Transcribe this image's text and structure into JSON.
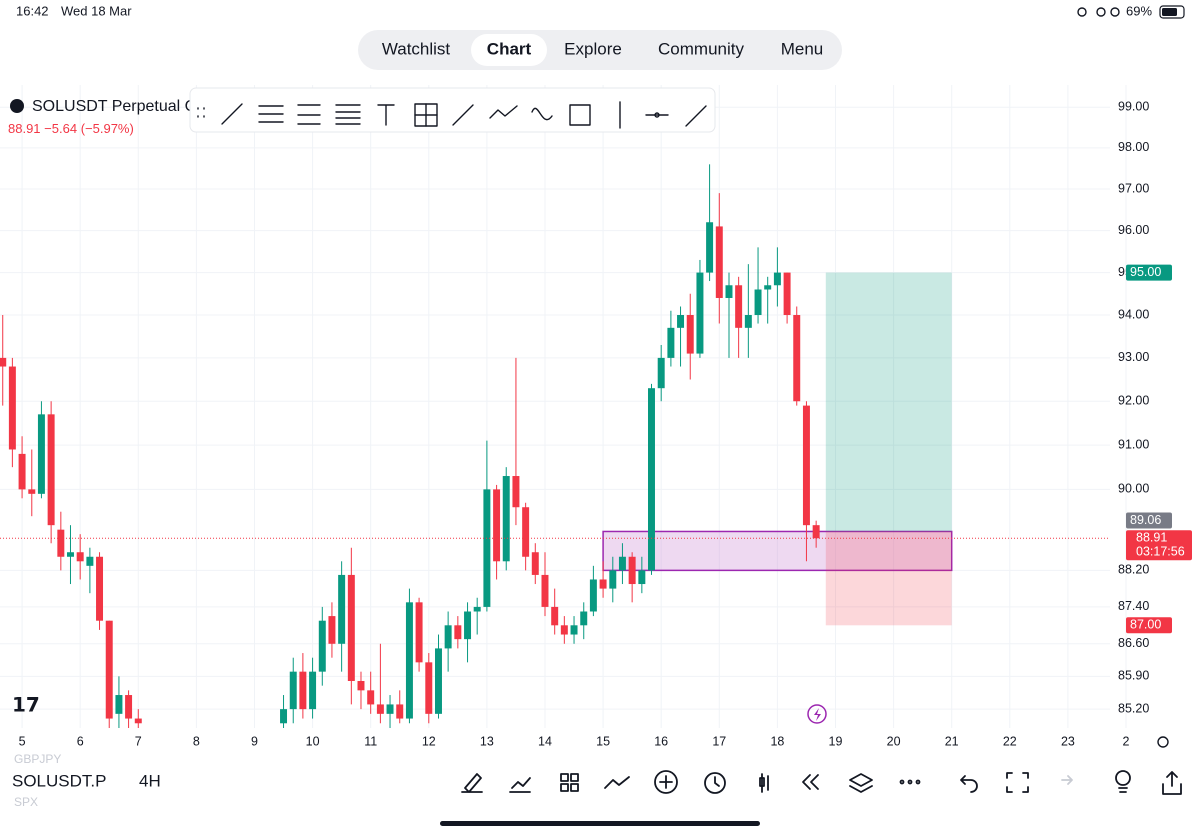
{
  "status_bar": {
    "time": "16:42",
    "date": "Wed 18 Mar",
    "battery": "69%"
  },
  "tabs": {
    "items": [
      "Watchlist",
      "Chart",
      "Explore",
      "Community",
      "Menu"
    ],
    "active": 1
  },
  "header": {
    "symbol": "SOLUSDT Perpetual C",
    "last": "88.91",
    "change": "−5.64",
    "change_pct": "(−5.97%)"
  },
  "chart_data": {
    "type": "candlestick",
    "log": true,
    "grid": true,
    "up_color": "#089981",
    "down_color": "#f23645",
    "xlim": [
      4.62,
      24
    ],
    "xticks": [
      5,
      6,
      7,
      8,
      9,
      10,
      11,
      12,
      13,
      14,
      15,
      16,
      17,
      18,
      19,
      20,
      21,
      22,
      23,
      {
        "value": 24,
        "label": "2"
      }
    ],
    "ylim": [
      84.8,
      99.55
    ],
    "yticks": [
      {
        "value": 99,
        "label": "99.00"
      },
      {
        "value": 98,
        "label": "98.00"
      },
      {
        "value": 97,
        "label": "97.00"
      },
      {
        "value": 96,
        "label": "96.00"
      },
      {
        "value": 95,
        "label": "95.00"
      },
      {
        "value": 94,
        "label": "94.00"
      },
      {
        "value": 93,
        "label": "93.00"
      },
      {
        "value": 92,
        "label": "92.00"
      },
      {
        "value": 91,
        "label": "91.00"
      },
      {
        "value": 90,
        "label": "90.00"
      },
      {
        "value": 88.2,
        "label": "88.20"
      },
      {
        "value": 87.4,
        "label": "87.40"
      },
      {
        "value": 86.6,
        "label": "86.60"
      },
      {
        "value": 85.9,
        "label": "85.90"
      },
      {
        "value": 85.2,
        "label": "85.20"
      }
    ],
    "x": [
      4.667,
      4.833,
      5.0,
      5.167,
      5.333,
      5.5,
      5.667,
      5.833,
      6.0,
      6.167,
      6.333,
      6.5,
      6.667,
      6.833,
      7.0,
      9.5,
      9.667,
      9.833,
      10.0,
      10.167,
      10.333,
      10.5,
      10.667,
      10.833,
      11.0,
      11.167,
      11.333,
      11.5,
      11.667,
      11.833,
      12.0,
      12.167,
      12.333,
      12.5,
      12.667,
      12.833,
      13.0,
      13.167,
      13.333,
      13.5,
      13.667,
      13.833,
      14.0,
      14.167,
      14.333,
      14.5,
      14.667,
      14.833,
      15.0,
      15.167,
      15.333,
      15.5,
      15.667,
      15.833,
      16.0,
      16.167,
      16.333,
      16.5,
      16.667,
      16.833,
      17.0,
      17.167,
      17.333,
      17.5,
      17.667,
      17.833,
      18.0,
      18.167,
      18.333,
      18.5,
      18.667
    ],
    "open": [
      93.0,
      92.8,
      90.8,
      90.0,
      89.9,
      91.7,
      89.1,
      88.5,
      88.6,
      88.3,
      88.5,
      87.1,
      85.1,
      85.5,
      85.0,
      84.9,
      85.2,
      86.0,
      85.2,
      86.0,
      87.2,
      86.6,
      88.1,
      85.8,
      85.6,
      85.3,
      85.1,
      85.3,
      85.0,
      87.5,
      86.2,
      85.1,
      86.5,
      87.0,
      86.7,
      87.3,
      87.4,
      90.0,
      88.4,
      90.3,
      89.6,
      88.6,
      88.1,
      87.4,
      87.0,
      86.8,
      87.0,
      87.3,
      88.0,
      87.8,
      88.2,
      88.5,
      87.9,
      88.2,
      92.3,
      93.0,
      93.7,
      94.0,
      93.1,
      95.0,
      96.1,
      94.4,
      94.7,
      93.7,
      94.0,
      94.6,
      94.7,
      95.0,
      94.0,
      91.9,
      89.2
    ],
    "high": [
      94.0,
      93.0,
      91.2,
      90.9,
      92.0,
      92.0,
      89.5,
      89.2,
      89.0,
      88.7,
      88.6,
      87.1,
      85.9,
      85.6,
      85.2,
      85.5,
      86.3,
      86.4,
      86.3,
      87.4,
      87.5,
      88.4,
      88.7,
      86.0,
      86.0,
      86.6,
      85.5,
      85.6,
      87.8,
      87.6,
      86.4,
      86.8,
      87.3,
      87.2,
      87.5,
      87.6,
      91.1,
      90.1,
      90.5,
      93.0,
      89.7,
      88.8,
      88.6,
      87.8,
      87.2,
      87.2,
      87.5,
      88.3,
      88.4,
      88.5,
      88.8,
      88.6,
      88.5,
      92.4,
      93.3,
      94.1,
      94.2,
      94.5,
      95.3,
      97.6,
      96.9,
      95.0,
      94.9,
      95.2,
      95.6,
      94.9,
      95.6,
      95.0,
      94.2,
      92.0,
      89.3
    ],
    "low": [
      91.9,
      90.5,
      89.8,
      89.4,
      89.8,
      88.8,
      88.2,
      87.9,
      88.0,
      87.7,
      86.9,
      84.8,
      84.8,
      84.8,
      84.8,
      84.8,
      84.9,
      85.0,
      85.0,
      85.7,
      86.3,
      86.0,
      85.3,
      85.2,
      85.1,
      84.9,
      84.8,
      84.9,
      84.9,
      86.0,
      84.9,
      85.0,
      86.0,
      86.5,
      86.2,
      86.8,
      87.3,
      88.0,
      88.2,
      89.2,
      88.2,
      87.9,
      87.2,
      86.8,
      86.6,
      86.6,
      86.7,
      87.2,
      87.6,
      87.5,
      87.9,
      87.5,
      87.7,
      88.1,
      92.0,
      92.8,
      92.8,
      92.5,
      93.0,
      94.8,
      93.8,
      93.0,
      93.0,
      93.0,
      93.8,
      93.8,
      94.2,
      93.8,
      91.9,
      88.4,
      88.7
    ],
    "close": [
      92.8,
      90.9,
      90.0,
      89.9,
      91.7,
      89.2,
      88.5,
      88.6,
      88.4,
      88.5,
      87.1,
      85.0,
      85.5,
      85.0,
      84.9,
      85.2,
      86.0,
      85.2,
      86.0,
      87.1,
      86.6,
      88.1,
      85.8,
      85.6,
      85.3,
      85.1,
      85.3,
      85.0,
      87.5,
      86.2,
      85.1,
      86.5,
      87.0,
      86.7,
      87.3,
      87.4,
      90.0,
      88.4,
      90.3,
      89.6,
      88.5,
      88.1,
      87.4,
      87.0,
      86.8,
      87.0,
      87.3,
      88.0,
      87.8,
      88.2,
      88.5,
      87.9,
      88.2,
      92.3,
      93.0,
      93.7,
      94.0,
      93.1,
      95.0,
      96.2,
      94.4,
      94.7,
      93.7,
      94.0,
      94.6,
      94.7,
      95.0,
      94.0,
      92.0,
      89.2,
      88.91
    ],
    "position": {
      "start": 18.833,
      "end": 21.0,
      "entry": {
        "value": 89.06,
        "label": "89.06"
      },
      "target": {
        "value": 95,
        "label": "95.00"
      },
      "stop": {
        "value": 87,
        "label": "87.00"
      }
    },
    "zone": {
      "start": 15.0,
      "end": 21.0,
      "top": 89.06,
      "bottom": 88.2
    },
    "last_price": {
      "value": 88.91,
      "label": "88.91",
      "countdown": "03:17:56"
    }
  },
  "footer": {
    "symbol": "SOLUSDT.P",
    "interval": "4H",
    "ghost_top": "GBPJPY",
    "ghost_bottom": "SPX"
  }
}
